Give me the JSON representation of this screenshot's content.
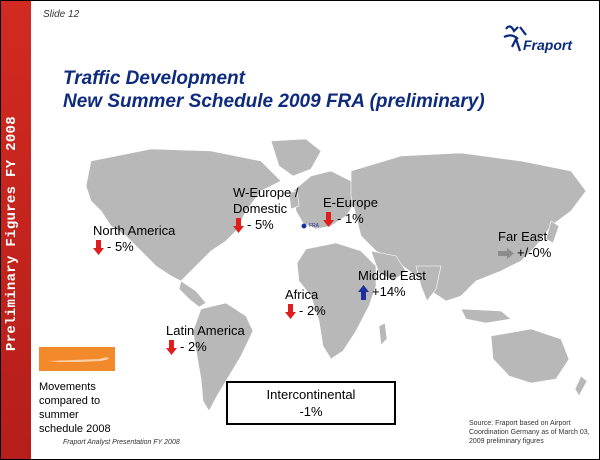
{
  "slide_label": "Slide 12",
  "sidebar_text": "Preliminary Figures FY 2008",
  "logo_text": "Fraport",
  "title_line1": "Traffic Development",
  "title_line2": "New Summer Schedule 2009 FRA (preliminary)",
  "regions": {
    "north_america": {
      "name": "North America",
      "change": "- 5%"
    },
    "w_europe": {
      "name_line1": "W-Europe /",
      "name_line2": "Domestic",
      "change": "- 5%"
    },
    "e_europe": {
      "name": "E-Europe",
      "change": "- 1%"
    },
    "far_east": {
      "name": "Far East",
      "change": "+/-0%"
    },
    "middle_east": {
      "name": "Middle East",
      "change": "+14%"
    },
    "africa": {
      "name": "Africa",
      "change": "- 2%"
    },
    "latin_america": {
      "name": "Latin America",
      "change": "- 2%"
    }
  },
  "intercontinental": {
    "label": "Intercontinental",
    "change": "-1%"
  },
  "movements_note": {
    "line1": "Movements",
    "line2": "compared to",
    "line3": "summer",
    "line4": "schedule 2008"
  },
  "footer_left": "Fraport Analyst Presentation FY 2008",
  "source": {
    "line1": "Source: Fraport based on Airport",
    "line2": "Coordination Germany as of March 03,",
    "line3": "2009 preliminary figures"
  },
  "colors": {
    "sidebar": "#c8231c",
    "title": "#0e2b7e",
    "down": "#e01e1e",
    "up": "#1d2f9a",
    "flat": "#8c8c8c",
    "land": "#b8b8b8",
    "swatch": "#f28a2c"
  }
}
